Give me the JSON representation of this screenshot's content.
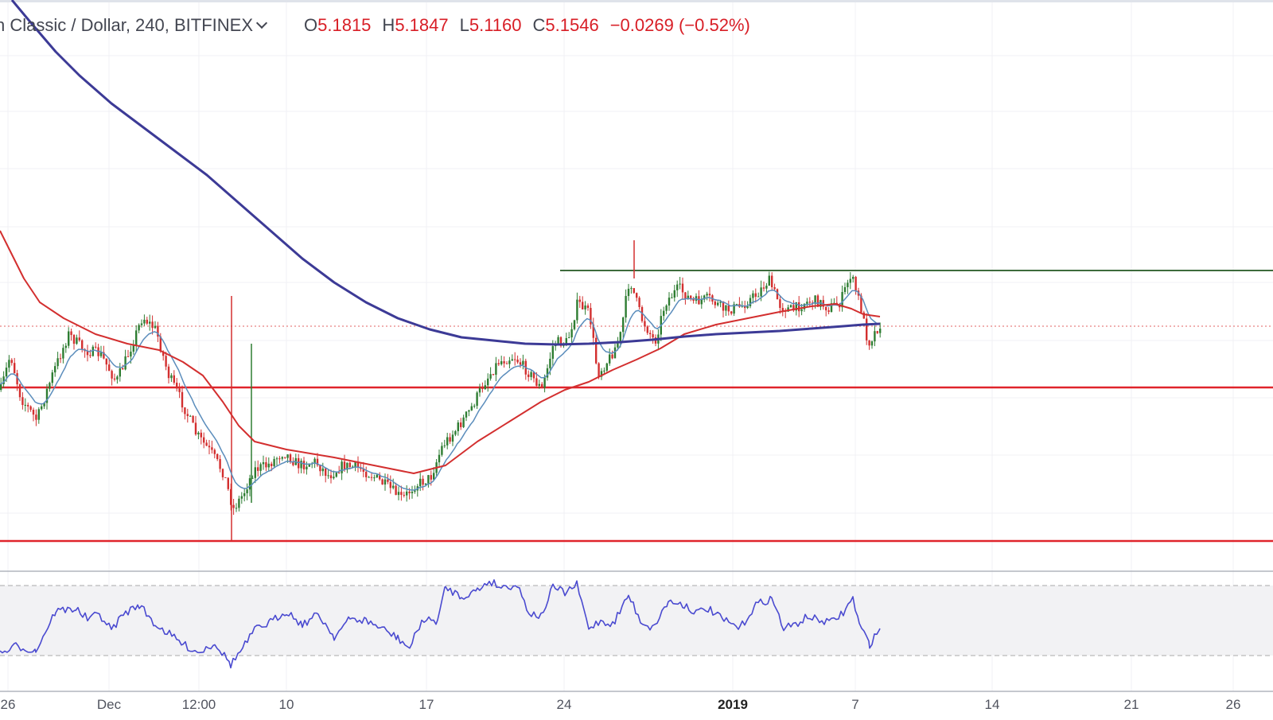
{
  "header": {
    "symbol": "n Classic / Dollar, 240, BITFINEX",
    "open_label": "O",
    "open": "5.1815",
    "high_label": "H",
    "high": "5.1847",
    "low_label": "L",
    "low": "5.1160",
    "close_label": "C",
    "close": "5.1546",
    "change": "−0.0269 (−0.52%)"
  },
  "colors": {
    "candle_up": "#2e7d32",
    "candle_down": "#d32f2f",
    "ma_fast": "#5b8dbc",
    "ma_mid": "#d32f2f",
    "ma_slow": "#3c3a96",
    "support": "#e0242b",
    "resistance": "#3d6b3c",
    "rsi": "#4a4ad0",
    "price_line": "#e06060"
  },
  "chart_data": {
    "type": "candlestick",
    "interval": "240",
    "x_ticks": [
      "26",
      "Dec",
      "12:00",
      "10",
      "17",
      "24",
      "2019",
      "7",
      "14",
      "21",
      "26"
    ],
    "last_ohlc": {
      "open": 5.1815,
      "high": 5.1847,
      "low": 5.116,
      "close": 5.1546,
      "change": -0.0269,
      "change_pct": -0.52
    },
    "horizontal_lines": [
      {
        "role": "resistance",
        "color": "#3d6b3c"
      },
      {
        "role": "support",
        "color": "#e0242b"
      },
      {
        "role": "support",
        "color": "#e0242b"
      }
    ],
    "indicators": [
      "moving average (fast)",
      "moving average (medium)",
      "moving average (slow)",
      "RSI"
    ],
    "grid": true,
    "log_scale": false
  }
}
